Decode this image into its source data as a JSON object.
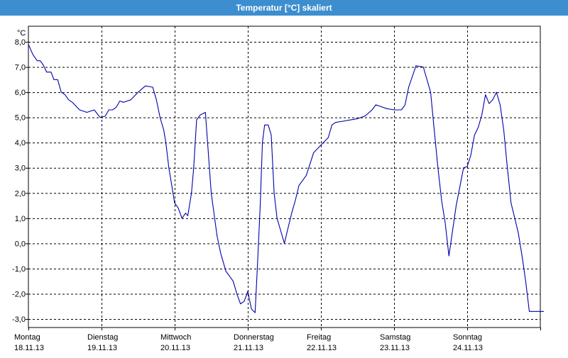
{
  "window": {
    "title": "Temperatur [°C] skaliert"
  },
  "chart_data": {
    "type": "line",
    "title": "Temperatur [°C] skaliert",
    "ylabel": "°C",
    "xlabel": "",
    "ylim": [
      -3.0,
      8.0
    ],
    "xlim": [
      0,
      7
    ],
    "grid": true,
    "y_ticks": [
      8.0,
      7.0,
      6.0,
      5.0,
      4.0,
      3.0,
      2.0,
      1.0,
      0.0,
      -1.0,
      -2.0,
      -3.0
    ],
    "y_tick_labels": [
      "8,0",
      "7,0",
      "6,0",
      "5,0",
      "4,0",
      "3,0",
      "2,0",
      "1,0",
      "0,0",
      "-1,0",
      "-2,0",
      "-3,0"
    ],
    "days": [
      {
        "day": "Montag",
        "date": "18.11.13"
      },
      {
        "day": "Dienstag",
        "date": "19.11.13"
      },
      {
        "day": "Mittwoch",
        "date": "20.11.13"
      },
      {
        "day": "Donnerstag",
        "date": "21.11.13"
      },
      {
        "day": "Freitag",
        "date": "22.11.13"
      },
      {
        "day": "Samstag",
        "date": "23.11.13"
      },
      {
        "day": "Sonntag",
        "date": "24.11.13"
      }
    ],
    "line_color": "#0000aa",
    "series": [
      {
        "x": [
          0.0,
          0.06,
          0.12,
          0.16,
          0.2,
          0.25,
          0.31,
          0.35,
          0.4,
          0.45,
          0.5,
          0.55,
          0.6,
          0.7,
          0.8,
          0.9,
          0.98,
          1.05,
          1.1,
          1.15,
          1.2,
          1.25,
          1.3,
          1.35,
          1.4,
          1.5,
          1.6,
          1.7,
          1.75,
          1.8,
          1.85,
          1.88,
          1.92,
          2.0,
          2.05,
          2.1,
          2.15,
          2.18,
          2.23,
          2.26,
          2.3,
          2.35,
          2.42,
          2.5,
          2.58,
          2.63,
          2.66,
          2.7,
          2.75,
          2.8,
          2.85,
          2.9,
          2.95,
          3.0,
          3.05,
          3.1,
          3.13,
          3.17,
          3.2,
          3.23,
          3.28,
          3.32,
          3.36,
          3.4,
          3.45,
          3.5,
          3.55,
          3.6,
          3.65,
          3.7,
          3.8,
          3.9,
          4.0,
          4.1,
          4.15,
          4.2,
          4.3,
          4.4,
          4.5,
          4.6,
          4.7,
          4.75,
          4.8,
          4.9,
          5.0,
          5.1,
          5.15,
          5.2,
          5.3,
          5.4,
          5.5,
          5.55,
          5.6,
          5.65,
          5.7,
          5.75,
          5.85,
          5.95,
          6.0,
          6.05,
          6.1,
          6.15,
          6.2,
          6.25,
          6.3,
          6.35,
          6.4,
          6.45,
          6.5,
          6.55,
          6.6,
          6.65,
          6.7,
          6.75,
          6.8,
          6.85,
          6.9,
          6.95,
          7.0,
          7.05
        ],
        "y": [
          7.9,
          7.5,
          7.25,
          7.25,
          7.1,
          6.8,
          6.8,
          6.5,
          6.5,
          6.0,
          5.9,
          5.7,
          5.6,
          5.3,
          5.2,
          5.3,
          5.0,
          5.05,
          5.3,
          5.3,
          5.4,
          5.65,
          5.6,
          5.65,
          5.7,
          6.0,
          6.25,
          6.2,
          5.7,
          5.0,
          4.5,
          4.0,
          3.0,
          1.6,
          1.4,
          1.0,
          1.2,
          1.1,
          2.0,
          3.0,
          4.9,
          5.1,
          5.2,
          2.0,
          0.3,
          -0.4,
          -0.7,
          -1.1,
          -1.3,
          -1.5,
          -2.0,
          -2.4,
          -2.3,
          -1.9,
          -2.6,
          -2.75,
          -1.0,
          1.5,
          4.0,
          4.7,
          4.7,
          4.3,
          2.0,
          1.0,
          0.5,
          0.0,
          0.6,
          1.2,
          1.7,
          2.3,
          2.7,
          3.6,
          3.9,
          4.2,
          4.7,
          4.8,
          4.85,
          4.9,
          4.95,
          5.05,
          5.3,
          5.5,
          5.45,
          5.35,
          5.3,
          5.3,
          5.5,
          6.2,
          7.05,
          7.0,
          6.0,
          4.5,
          3.0,
          1.7,
          0.8,
          -0.5,
          1.5,
          3.0,
          3.05,
          3.5,
          4.3,
          4.6,
          5.1,
          5.9,
          5.55,
          5.7,
          6.0,
          5.5,
          4.5,
          3.0,
          1.6,
          1.0,
          0.4,
          -0.5,
          -1.5,
          -2.7,
          -2.7,
          -2.7,
          -2.7,
          -2.7
        ]
      }
    ]
  }
}
